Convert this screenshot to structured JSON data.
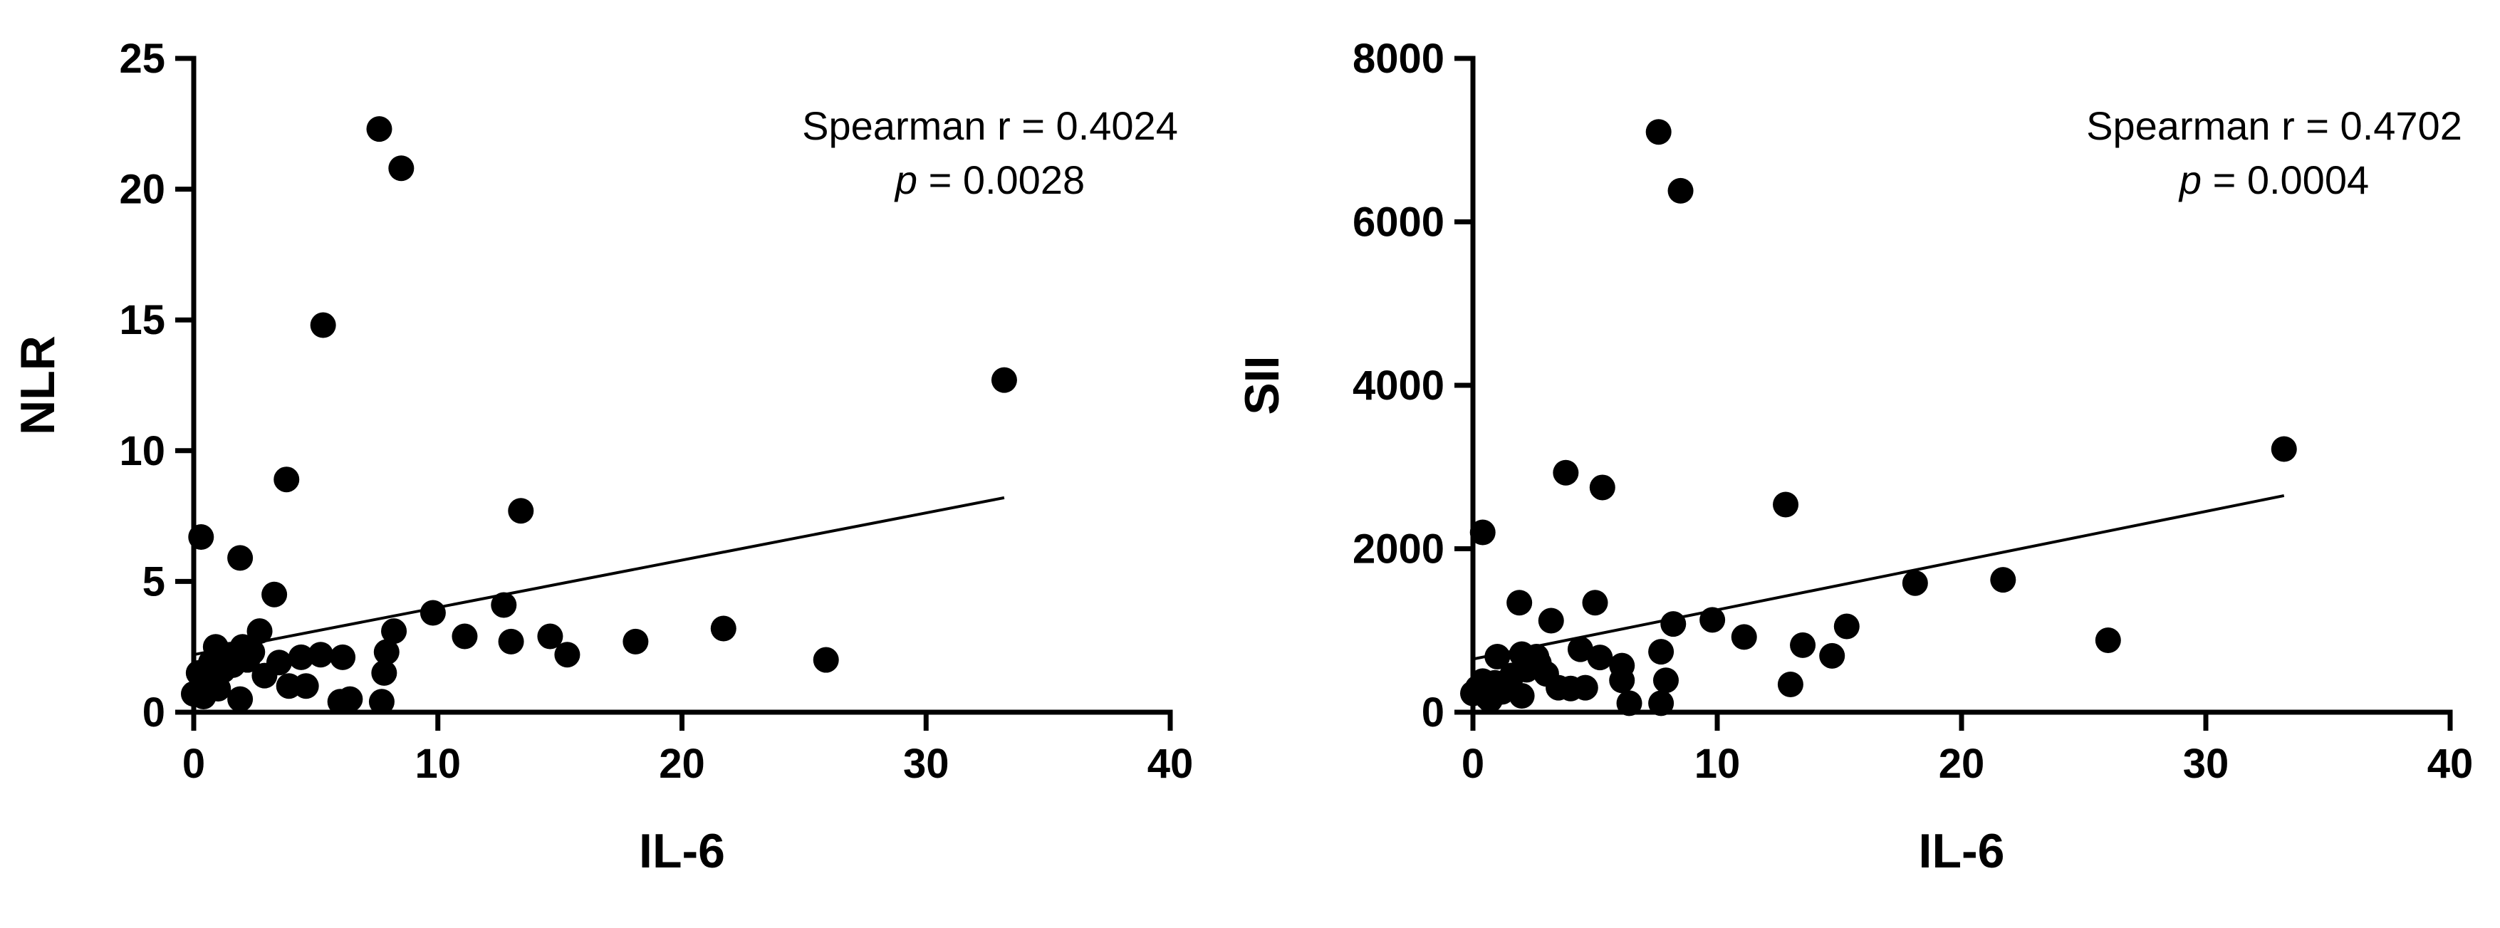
{
  "chart_data": [
    {
      "type": "scatter",
      "xlabel": "IL-6",
      "ylabel": "NLR",
      "xlim": [
        0,
        40
      ],
      "ylim": [
        0,
        25
      ],
      "xticks": [
        0,
        10,
        20,
        30,
        40
      ],
      "yticks": [
        0,
        5,
        10,
        15,
        20,
        25
      ],
      "grid": false,
      "annotation": {
        "line1": "Spearman r = 0.4024",
        "p_label": "p",
        "p_value": " = 0.0028"
      },
      "fit_line": {
        "x": [
          0,
          33.2
        ],
        "y": [
          2.2,
          8.2
        ]
      },
      "points": {
        "x": [
          7.6,
          8.5,
          5.3,
          33.2,
          3.8,
          13.4,
          0.3,
          1.9,
          3.3,
          9.8,
          12.7,
          21.7,
          18.1,
          14.6,
          11.1,
          13.0,
          15.3,
          25.9,
          8.2,
          2.7,
          7.9,
          5.2,
          4.4,
          6.1,
          0.9,
          1.5,
          2.0,
          2.4,
          3.5,
          1.2,
          0.6,
          0.2,
          0.4,
          1.0,
          2.9,
          4.6,
          3.9,
          7.8,
          6.4,
          7.7,
          1.9,
          0.0,
          0.4,
          1.6,
          2.2,
          0.7,
          6.0
        ],
        "y": [
          22.3,
          20.8,
          14.8,
          12.7,
          8.9,
          7.7,
          6.7,
          5.9,
          4.5,
          3.8,
          4.1,
          3.2,
          2.7,
          2.9,
          2.9,
          2.7,
          2.2,
          2.0,
          3.1,
          3.1,
          2.3,
          2.2,
          2.1,
          2.1,
          2.5,
          2.2,
          2.5,
          2.3,
          1.9,
          1.6,
          1.3,
          1.5,
          1.0,
          0.9,
          1.4,
          1.0,
          1.0,
          1.5,
          0.5,
          0.4,
          0.5,
          0.7,
          0.6,
          1.8,
          2.0,
          1.9,
          0.4
        ]
      }
    },
    {
      "type": "scatter",
      "xlabel": "IL-6",
      "ylabel": "SII",
      "xlim": [
        0,
        40
      ],
      "ylim": [
        0,
        8000
      ],
      "xticks": [
        0,
        10,
        20,
        30,
        40
      ],
      "yticks": [
        0,
        2000,
        4000,
        6000,
        8000
      ],
      "grid": false,
      "annotation": {
        "line1": "Spearman r = 0.4702",
        "p_label": "p",
        "p_value": " = 0.0004"
      },
      "fit_line": {
        "x": [
          0,
          33.2
        ],
        "y": [
          650,
          2650
        ]
      },
      "points": {
        "x": [
          7.6,
          8.5,
          33.2,
          3.8,
          5.3,
          12.8,
          0.4,
          21.7,
          18.1,
          26.0,
          1.9,
          5.0,
          3.2,
          9.8,
          8.2,
          15.3,
          11.1,
          13.5,
          14.7,
          4.4,
          5.2,
          6.1,
          7.7,
          13.0,
          2.0,
          2.6,
          1.0,
          2.7,
          2.2,
          3.0,
          1.6,
          0.4,
          0.2,
          0.9,
          1.4,
          3.5,
          4.0,
          4.6,
          6.1,
          7.9,
          7.7,
          6.4,
          0.6,
          2.0,
          1.2,
          0.0,
          0.7
        ],
        "y": [
          7100,
          6380,
          3220,
          2930,
          2750,
          2540,
          2200,
          1620,
          1580,
          880,
          1340,
          1340,
          1120,
          1130,
          1080,
          1050,
          920,
          820,
          690,
          770,
          670,
          570,
          740,
          340,
          710,
          680,
          680,
          600,
          520,
          470,
          450,
          380,
          300,
          360,
          340,
          300,
          290,
          300,
          390,
          390,
          110,
          110,
          180,
          200,
          250,
          230,
          150
        ]
      }
    }
  ]
}
